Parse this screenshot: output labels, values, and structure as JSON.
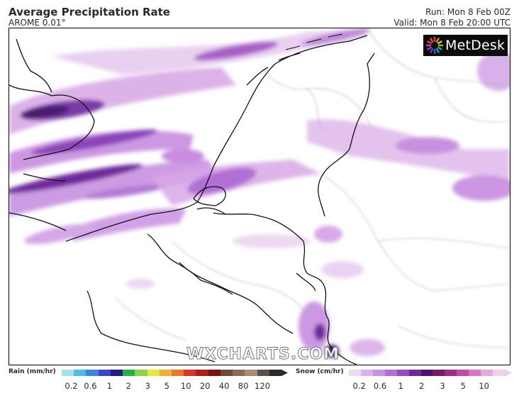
{
  "header": {
    "title": "Average Precipitation Rate",
    "model": "AROME 0.01°",
    "run": "Run: Mon 8 Feb 00Z",
    "valid": "Valid: Mon 8 Feb 20:00 UTC"
  },
  "logo": {
    "text": "MetDesk",
    "icon": "metdesk-burst-icon"
  },
  "watermark": "WXCHARTS.COM",
  "legend": {
    "rain": {
      "label": "Rain (mm/hr)",
      "colors": [
        "#a8e0e6",
        "#4cbde6",
        "#3b84e6",
        "#3a44d0",
        "#1c1c8c",
        "#25b04a",
        "#8ad24a",
        "#e6e640",
        "#f0b030",
        "#e8782a",
        "#e03028",
        "#b01c1c",
        "#7a1010",
        "#6a4a3a",
        "#8a6a58",
        "#a88c78",
        "#5a5050",
        "#2a2a2a"
      ],
      "ticks": [
        "0.2",
        "0.6",
        "1",
        "2",
        "3",
        "5",
        "10",
        "20",
        "40",
        "80",
        "120"
      ]
    },
    "snow": {
      "label": "Snow (cm/hr)",
      "colors": [
        "#f0dcf2",
        "#dcb0ea",
        "#c890e0",
        "#b86cd8",
        "#9a48c4",
        "#6e2a9a",
        "#4a1470",
        "#7a1868",
        "#a02a8a",
        "#c04aa8",
        "#d878c4",
        "#e8a8d8",
        "#f2d0ea"
      ],
      "ticks": [
        "0.2",
        "0.6",
        "1",
        "2",
        "3",
        "5",
        "10"
      ]
    }
  }
}
